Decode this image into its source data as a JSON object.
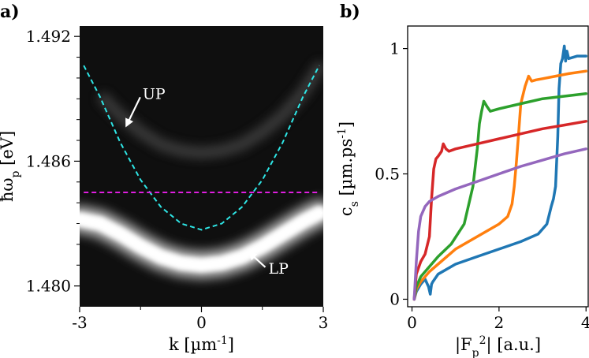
{
  "panels": {
    "a": {
      "label": "a)"
    },
    "b": {
      "label": "b)"
    }
  },
  "chart_data": [
    {
      "type": "heatmap",
      "panel": "a)",
      "xlabel": "k [µm",
      "xlabel_sup": "-1",
      "xlabel_end": "]",
      "ylabel": "ħω",
      "ylabel_sub": "p",
      "ylabel_end": " [eV]",
      "xlim": [
        -3,
        3
      ],
      "ylim": [
        1.479,
        1.4925
      ],
      "x_ticks": [
        -3,
        0,
        3
      ],
      "x_tick_labels": [
        "-3",
        "0",
        "3"
      ],
      "y_ticks": [
        1.48,
        1.486,
        1.492
      ],
      "y_tick_labels": [
        "1.480",
        "1.486",
        "1.492"
      ],
      "colormap": "grayscale",
      "series": [
        {
          "style": "dashed",
          "color": "#2ee6e6",
          "x": [
            -2.9,
            -2.5,
            -2.0,
            -1.5,
            -1.0,
            -0.5,
            0.0,
            0.5,
            1.0,
            1.5,
            2.0,
            2.5,
            2.9
          ],
          "y": [
            1.4906,
            1.4891,
            1.4869,
            1.4851,
            1.4838,
            1.483,
            1.4827,
            1.483,
            1.4838,
            1.4851,
            1.4869,
            1.4891,
            1.4906
          ]
        },
        {
          "style": "dashed",
          "color": "#e01ee0",
          "x": [
            -2.9,
            2.9
          ],
          "y": [
            1.4845,
            1.4845
          ]
        }
      ],
      "bands": [
        {
          "brightness": "bright",
          "x": [
            -3.0,
            -2.5,
            -2.0,
            -1.5,
            -1.0,
            -0.5,
            0.0,
            0.5,
            1.0,
            1.5,
            2.0,
            2.5,
            2.9
          ],
          "y": [
            1.4832,
            1.483,
            1.4825,
            1.4819,
            1.4814,
            1.4811,
            1.481,
            1.4811,
            1.4814,
            1.4819,
            1.4825,
            1.4831,
            1.4835
          ]
        },
        {
          "brightness": "faint",
          "x": [
            -2.4,
            -2.0,
            -1.5,
            -1.0,
            -0.5,
            0.0,
            0.5,
            1.0,
            1.5,
            2.0,
            2.5,
            2.9
          ],
          "y": [
            1.489,
            1.4882,
            1.4874,
            1.4868,
            1.4865,
            1.4864,
            1.4865,
            1.4868,
            1.4874,
            1.4882,
            1.4893,
            1.4905
          ]
        }
      ],
      "annotations": [
        {
          "text": "UP",
          "x": -1.45,
          "y": 1.489,
          "arrow_to": [
            -1.85,
            1.4877
          ]
        },
        {
          "text": "LP",
          "x": 1.65,
          "y": 1.4806,
          "arrow_to": [
            1.18,
            1.4816
          ]
        }
      ]
    },
    {
      "type": "line",
      "panel": "b)",
      "xlabel": "|F",
      "xlabel_sub": "p",
      "xlabel_sup": "2",
      "xlabel_end": "| [a.u.]",
      "ylabel": "c",
      "ylabel_sub": "s",
      "ylabel_mid": " [µm.ps",
      "ylabel_sup": "-1",
      "ylabel_end": "]",
      "xlim": [
        -0.1,
        4.05
      ],
      "ylim": [
        -0.03,
        1.09
      ],
      "x_ticks": [
        0,
        2,
        4
      ],
      "x_tick_labels": [
        "0",
        "2",
        "4"
      ],
      "y_ticks": [
        0,
        0.5,
        1
      ],
      "y_tick_labels": [
        "0",
        "0.5",
        "1"
      ],
      "grid": false,
      "series": [
        {
          "color": "#1f77b4",
          "x": [
            0.05,
            0.1,
            0.2,
            0.3,
            0.38,
            0.42,
            0.45,
            0.48,
            0.6,
            1.0,
            1.5,
            2.0,
            2.5,
            2.9,
            3.1,
            3.2,
            3.25,
            3.3,
            3.35,
            3.38,
            3.42,
            3.46,
            3.5,
            3.53,
            3.56,
            3.6,
            3.7,
            3.8,
            3.9,
            4.0
          ],
          "y": [
            0.0,
            0.03,
            0.06,
            0.08,
            0.05,
            0.02,
            0.06,
            0.07,
            0.1,
            0.14,
            0.17,
            0.2,
            0.23,
            0.26,
            0.3,
            0.37,
            0.4,
            0.45,
            0.65,
            0.84,
            0.94,
            0.96,
            1.01,
            0.95,
            0.99,
            0.96,
            0.965,
            0.97,
            0.97,
            0.97
          ]
        },
        {
          "color": "#ff7f0e",
          "x": [
            0.05,
            0.1,
            0.2,
            0.3,
            0.4,
            0.6,
            1.0,
            1.5,
            2.0,
            2.2,
            2.3,
            2.35,
            2.4,
            2.45,
            2.5,
            2.6,
            2.68,
            2.75,
            2.85,
            3.0,
            3.3,
            3.6,
            4.0
          ],
          "y": [
            0.0,
            0.04,
            0.07,
            0.09,
            0.11,
            0.14,
            0.2,
            0.25,
            0.3,
            0.33,
            0.38,
            0.45,
            0.55,
            0.66,
            0.78,
            0.85,
            0.89,
            0.87,
            0.875,
            0.88,
            0.89,
            0.9,
            0.91
          ]
        },
        {
          "color": "#2ca02c",
          "x": [
            0.05,
            0.1,
            0.2,
            0.3,
            0.4,
            0.6,
            0.9,
            1.2,
            1.4,
            1.5,
            1.55,
            1.6,
            1.65,
            1.72,
            1.8,
            2.0,
            2.5,
            3.0,
            3.5,
            4.0
          ],
          "y": [
            0.0,
            0.05,
            0.09,
            0.11,
            0.13,
            0.17,
            0.22,
            0.3,
            0.45,
            0.6,
            0.7,
            0.75,
            0.79,
            0.77,
            0.75,
            0.76,
            0.78,
            0.8,
            0.81,
            0.82
          ]
        },
        {
          "color": "#d62728",
          "x": [
            0.05,
            0.1,
            0.2,
            0.3,
            0.4,
            0.45,
            0.5,
            0.55,
            0.6,
            0.68,
            0.72,
            0.78,
            0.85,
            1.0,
            1.5,
            2.0,
            2.5,
            3.0,
            3.5,
            4.0
          ],
          "y": [
            0.0,
            0.1,
            0.15,
            0.18,
            0.25,
            0.4,
            0.52,
            0.56,
            0.57,
            0.59,
            0.62,
            0.6,
            0.59,
            0.6,
            0.62,
            0.64,
            0.66,
            0.68,
            0.695,
            0.71
          ]
        },
        {
          "color": "#9467bd",
          "x": [
            0.05,
            0.1,
            0.15,
            0.2,
            0.3,
            0.4,
            0.6,
            1.0,
            1.5,
            2.0,
            2.5,
            3.0,
            3.5,
            4.0
          ],
          "y": [
            0.0,
            0.15,
            0.27,
            0.33,
            0.37,
            0.39,
            0.41,
            0.44,
            0.47,
            0.5,
            0.53,
            0.555,
            0.58,
            0.6
          ]
        }
      ]
    }
  ]
}
